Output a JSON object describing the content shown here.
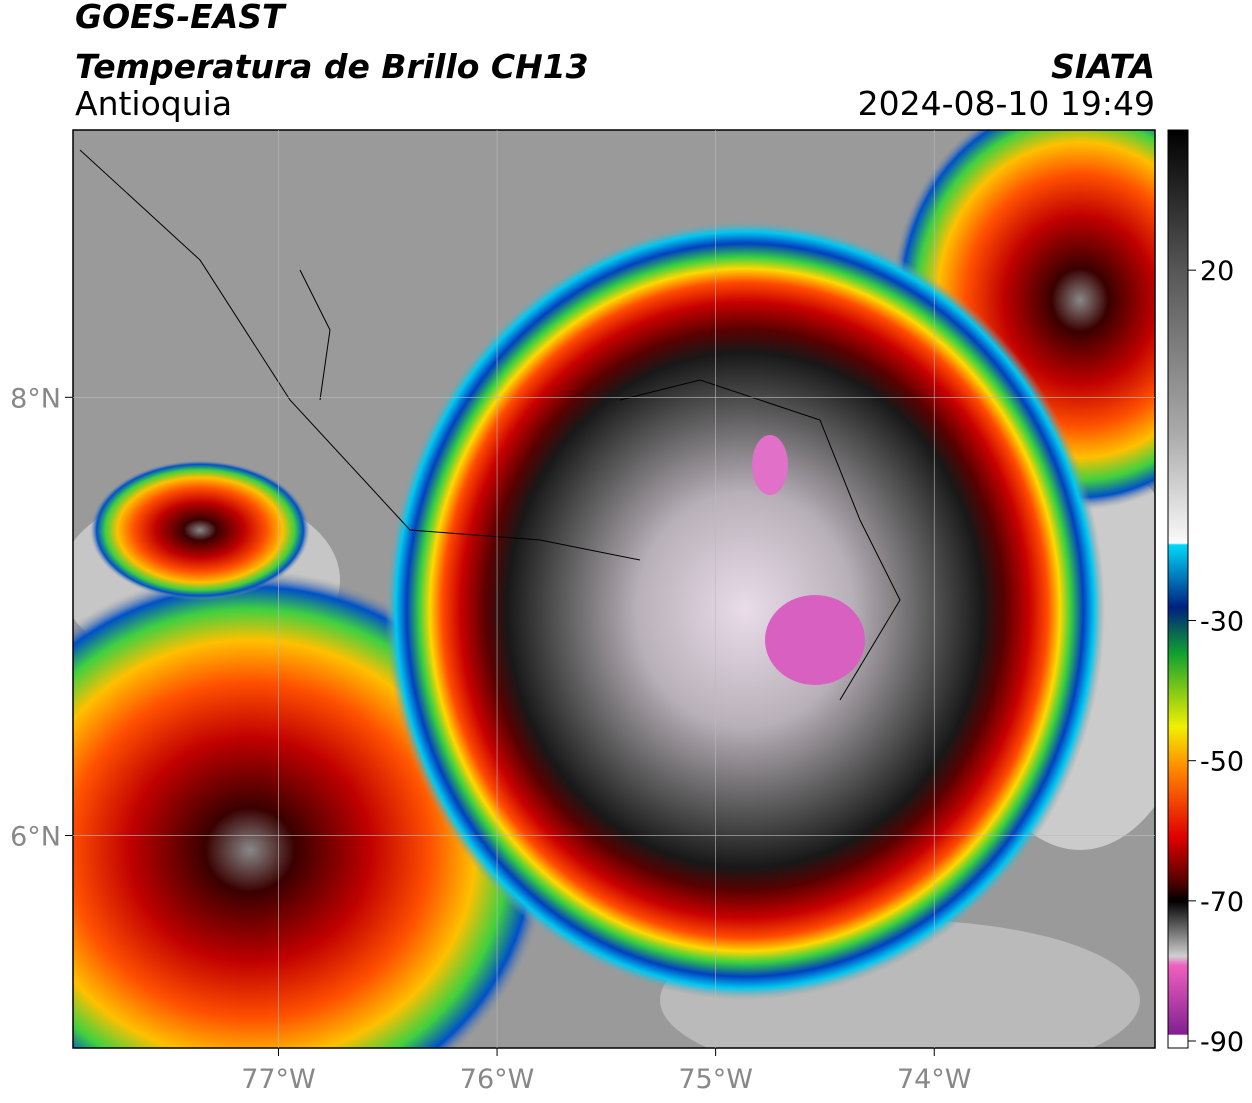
{
  "header": {
    "satellite": "GOES-EAST",
    "product": "Temperatura de Brillo CH13",
    "region": "Antioquia",
    "agency": "SIATA",
    "datetime": "2024-08-10 19:49"
  },
  "map": {
    "lonlim": [
      -77.94,
      -72.99
    ],
    "latlim": [
      5.03,
      9.22
    ],
    "lonticks": [
      {
        "value": -77,
        "label": "77°W"
      },
      {
        "value": -76,
        "label": "76°W"
      },
      {
        "value": -75,
        "label": "75°W"
      },
      {
        "value": -74,
        "label": "74°W"
      }
    ],
    "latticks": [
      {
        "value": 8,
        "label": "8°N"
      },
      {
        "value": 6,
        "label": "6°N"
      }
    ]
  },
  "colorbar": {
    "lim": [
      -91,
      40
    ],
    "ticks": [
      20,
      -30,
      -50,
      -70,
      -90
    ]
  }
}
